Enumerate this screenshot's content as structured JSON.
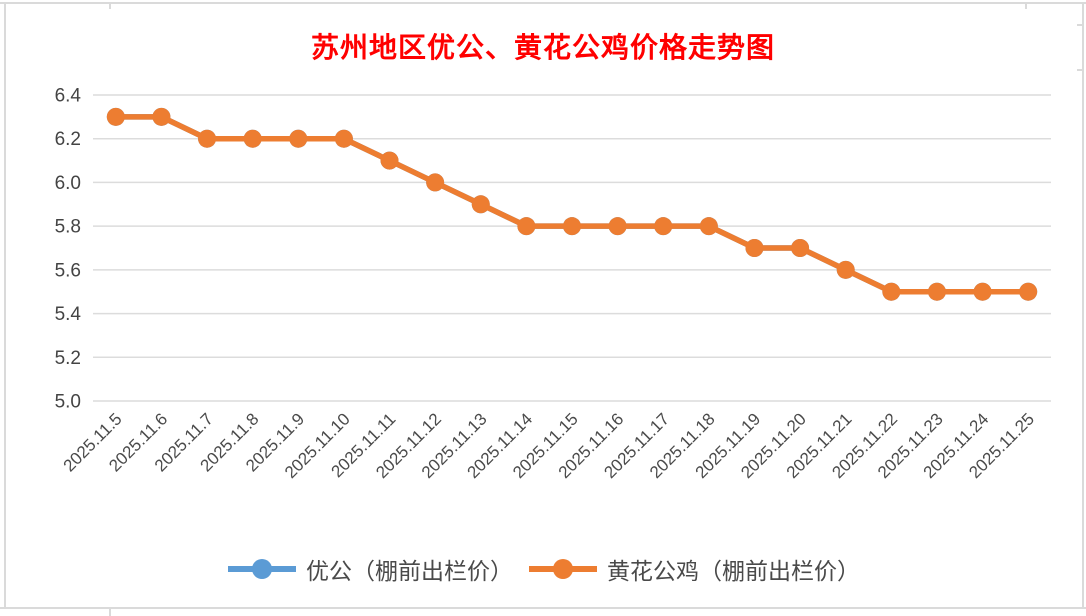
{
  "title": {
    "text": "苏州地区优公、黄花公鸡价格走势图",
    "color": "#FF0000"
  },
  "chart_data": {
    "type": "line",
    "title": "苏州地区优公、黄花公鸡价格走势图",
    "xlabel": "",
    "ylabel": "",
    "categories": [
      "2025.11.5",
      "2025.11.6",
      "2025.11.7",
      "2025.11.8",
      "2025.11.9",
      "2025.11.10",
      "2025.11.11",
      "2025.11.12",
      "2025.11.13",
      "2025.11.14",
      "2025.11.15",
      "2025.11.16",
      "2025.11.17",
      "2025.11.18",
      "2025.11.19",
      "2025.11.20",
      "2025.11.21",
      "2025.11.22",
      "2025.11.23",
      "2025.11.24",
      "2025.11.25"
    ],
    "series": [
      {
        "name": "优公（棚前出栏价）",
        "color": "#5B9BD5",
        "values": [
          6.3,
          6.3,
          6.2,
          6.2,
          6.2,
          6.2,
          6.1,
          6.0,
          5.9,
          5.8,
          5.8,
          5.8,
          5.8,
          5.8,
          5.7,
          5.7,
          5.6,
          5.5,
          5.5,
          5.5,
          5.5
        ],
        "note": "hidden under second series (identical values)"
      },
      {
        "name": "黄花公鸡（棚前出栏价）",
        "color": "#ED7D31",
        "values": [
          6.3,
          6.3,
          6.2,
          6.2,
          6.2,
          6.2,
          6.1,
          6.0,
          5.9,
          5.8,
          5.8,
          5.8,
          5.8,
          5.8,
          5.7,
          5.7,
          5.6,
          5.5,
          5.5,
          5.5,
          5.5
        ]
      }
    ],
    "ylim": [
      5.0,
      6.4
    ],
    "yticks": [
      "6.4",
      "6.2",
      "6.0",
      "5.8",
      "5.6",
      "5.4",
      "5.2",
      "5.0"
    ],
    "grid": true,
    "grid_color": "#dcdcdc",
    "x_label_rotation_deg": 45,
    "legend_position": "bottom"
  }
}
